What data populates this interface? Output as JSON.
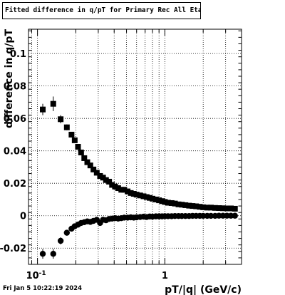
{
  "title": "Fitted difference in q/pT  for Primary Rec All EtapT",
  "footer": "Fri Jan  5 10:22:19 2024",
  "chart_data": {
    "type": "scatter",
    "title": "Fitted difference in q/pT  for Primary Rec All EtapT",
    "xlabel": "pT/|q| (GeV/c)",
    "ylabel": "difference in q/pT",
    "xscale": "log",
    "xlim": [
      0.085,
      4.0
    ],
    "ylim": [
      -0.03,
      0.115
    ],
    "grid": true,
    "xticklabels": [
      "10^-1",
      "1"
    ],
    "yticks": [
      -0.02,
      0,
      0.02,
      0.04,
      0.06,
      0.08,
      0.1
    ],
    "yticklabels": [
      "-0.02",
      "0",
      "0.02",
      "0.04",
      "0.06",
      "0.08",
      "0.1"
    ],
    "series": [
      {
        "marker": "square",
        "x": [
          0.11,
          0.133,
          0.152,
          0.17,
          0.185,
          0.196,
          0.208,
          0.22,
          0.233,
          0.246,
          0.26,
          0.275,
          0.292,
          0.31,
          0.327,
          0.345,
          0.365,
          0.385,
          0.406,
          0.43,
          0.455,
          0.48,
          0.51,
          0.54,
          0.57,
          0.6,
          0.64,
          0.68,
          0.72,
          0.76,
          0.8,
          0.85,
          0.9,
          0.95,
          1.0,
          1.06,
          1.13,
          1.2,
          1.28,
          1.36,
          1.45,
          1.55,
          1.65,
          1.76,
          1.88,
          2.0,
          2.15,
          2.3,
          2.48,
          2.66,
          2.86,
          3.07,
          3.3,
          3.55
        ],
        "y": [
          0.0655,
          0.069,
          0.0595,
          0.0545,
          0.05,
          0.0465,
          0.0425,
          0.039,
          0.0355,
          0.033,
          0.031,
          0.0285,
          0.0265,
          0.0245,
          0.0235,
          0.022,
          0.021,
          0.019,
          0.018,
          0.017,
          0.016,
          0.016,
          0.015,
          0.014,
          0.0135,
          0.013,
          0.0125,
          0.012,
          0.0115,
          0.011,
          0.0105,
          0.01,
          0.0095,
          0.009,
          0.0085,
          0.008,
          0.0078,
          0.0075,
          0.007,
          0.0068,
          0.0065,
          0.0062,
          0.006,
          0.0058,
          0.0055,
          0.0052,
          0.005,
          0.005,
          0.0048,
          0.0047,
          0.0046,
          0.0045,
          0.0045,
          0.0043
        ],
        "yerr": [
          0.0035,
          0.0045,
          0.0025,
          0.0018,
          0.0014,
          0.0012,
          0.001,
          0.001,
          0.0009,
          0.0009,
          0.0008,
          0.0008,
          0.0008,
          0.0007,
          0.0007,
          0.0007,
          0.0006,
          0.0006,
          0.0006,
          0.0006,
          0.0006,
          0.0005,
          0.0005,
          0.0005,
          0.0005,
          0.0005,
          0.0005,
          0.0005,
          0.0004,
          0.0004,
          0.0004,
          0.0004,
          0.0004,
          0.0004,
          0.0004,
          0.0004,
          0.0004,
          0.0004,
          0.0004,
          0.0004,
          0.0004,
          0.0004,
          0.0004,
          0.0004,
          0.0004,
          0.0004,
          0.0004,
          0.0004,
          0.0004,
          0.0004,
          0.0004,
          0.0004,
          0.0004,
          0.0004
        ]
      },
      {
        "marker": "circle",
        "x": [
          0.11,
          0.133,
          0.152,
          0.17,
          0.185,
          0.196,
          0.208,
          0.22,
          0.233,
          0.246,
          0.26,
          0.275,
          0.292,
          0.31,
          0.327,
          0.345,
          0.365,
          0.385,
          0.406,
          0.43,
          0.455,
          0.48,
          0.51,
          0.54,
          0.57,
          0.6,
          0.64,
          0.68,
          0.72,
          0.76,
          0.8,
          0.85,
          0.9,
          0.95,
          1.0,
          1.06,
          1.13,
          1.2,
          1.28,
          1.36,
          1.45,
          1.55,
          1.65,
          1.76,
          1.88,
          2.0,
          2.15,
          2.3,
          2.48,
          2.66,
          2.86,
          3.07,
          3.3,
          3.55
        ],
        "y": [
          -0.0235,
          -0.0235,
          -0.0155,
          -0.0105,
          -0.008,
          -0.0065,
          -0.0055,
          -0.0045,
          -0.004,
          -0.0035,
          -0.0038,
          -0.0032,
          -0.0025,
          -0.0045,
          -0.0025,
          -0.0028,
          -0.002,
          -0.0018,
          -0.0015,
          -0.0018,
          -0.0015,
          -0.0012,
          -0.0012,
          -0.001,
          -0.0012,
          -0.001,
          -0.0008,
          -0.0006,
          -0.0008,
          -0.0005,
          -0.0006,
          -0.0004,
          -0.0004,
          -0.0004,
          -0.0003,
          -0.0003,
          -0.0003,
          -0.0002,
          -0.0002,
          -0.0002,
          -0.0002,
          -0.0002,
          -0.0001,
          -0.0001,
          -0.0001,
          -0.0001,
          -0.0001,
          -0.0001,
          -0.0001,
          0.0,
          0.0,
          0.0,
          0.0,
          0.0
        ],
        "yerr": [
          0.003,
          0.003,
          0.0022,
          0.0016,
          0.0013,
          0.0011,
          0.001,
          0.001,
          0.0009,
          0.0009,
          0.0008,
          0.0008,
          0.0008,
          0.0008,
          0.0007,
          0.0007,
          0.0006,
          0.0006,
          0.0006,
          0.0006,
          0.0006,
          0.0005,
          0.0005,
          0.0005,
          0.0005,
          0.0005,
          0.0005,
          0.0005,
          0.0004,
          0.0004,
          0.0004,
          0.0004,
          0.0004,
          0.0004,
          0.0004,
          0.0004,
          0.0004,
          0.0004,
          0.0004,
          0.0004,
          0.0004,
          0.0004,
          0.0004,
          0.0004,
          0.0004,
          0.0004,
          0.0004,
          0.0004,
          0.0004,
          0.0004,
          0.0004,
          0.0004,
          0.0004,
          0.0004
        ]
      }
    ]
  }
}
